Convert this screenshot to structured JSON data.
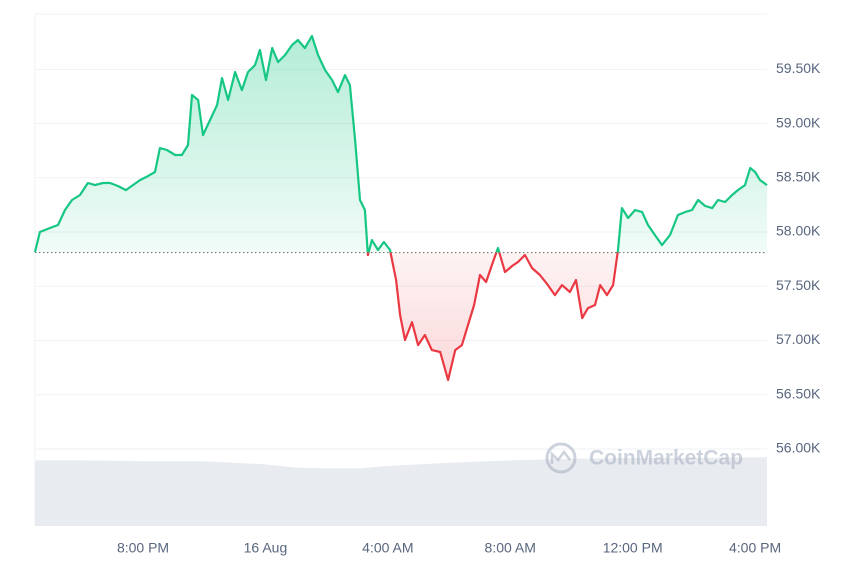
{
  "chart_data": {
    "type": "line",
    "x": [
      16.47,
      16.63,
      16.96,
      17.22,
      17.45,
      17.68,
      17.94,
      18.2,
      18.43,
      18.69,
      18.92,
      19.18,
      19.44,
      19.67,
      19.9,
      20.16,
      20.39,
      20.55,
      20.78,
      21.05,
      21.27,
      21.47,
      21.6,
      21.8,
      21.96,
      22.19,
      22.42,
      22.58,
      22.78,
      23.01,
      23.23,
      23.43,
      23.66,
      23.82,
      24.02,
      24.22,
      24.41,
      24.64,
      24.87,
      25.06,
      25.29,
      25.52,
      25.72,
      25.95,
      26.18,
      26.37,
      26.6,
      26.76,
      26.93,
      27.09,
      27.25,
      27.35,
      27.48,
      27.68,
      27.87,
      28.07,
      28.27,
      28.4,
      28.56,
      28.79,
      28.99,
      29.21,
      29.44,
      29.71,
      29.97,
      30.2,
      30.42,
      30.62,
      30.82,
      31.01,
      31.21,
      31.4,
      31.6,
      31.83,
      32.06,
      32.25,
      32.48,
      32.71,
      32.97,
      33.23,
      33.46,
      33.69,
      33.95,
      34.15,
      34.35,
      34.54,
      34.77,
      34.94,
      35.16,
      35.36,
      35.52,
      35.65,
      35.85,
      36.08,
      36.31,
      36.5,
      36.73,
      36.96,
      37.22,
      37.48,
      37.71,
      37.94,
      38.14,
      38.37,
      38.6,
      38.79,
      39.02,
      39.25,
      39.44,
      39.67,
      39.84,
      40.0,
      40.16,
      40.39
    ],
    "series": [
      {
        "values": [
          57816,
          58000,
          58037,
          58065,
          58203,
          58295,
          58341,
          58452,
          58433,
          58452,
          58452,
          58424,
          58387,
          58433,
          58479,
          58516,
          58553,
          58774,
          58756,
          58710,
          58710,
          58802,
          59263,
          59217,
          58894,
          59032,
          59171,
          59419,
          59217,
          59475,
          59308,
          59475,
          59539,
          59679,
          59401,
          59697,
          59567,
          59631,
          59724,
          59770,
          59696,
          59807,
          59631,
          59493,
          59401,
          59290,
          59447,
          59355,
          58848,
          58295,
          58203,
          57788,
          57926,
          57834,
          57908,
          57834,
          57558,
          57235,
          57005,
          57170,
          56958,
          57051,
          56912,
          56894,
          56636,
          56912,
          56958,
          57143,
          57327,
          57604,
          57539,
          57696,
          57853,
          57631,
          57687,
          57723,
          57788,
          57668,
          57604,
          57511,
          57419,
          57511,
          57447,
          57558,
          57207,
          57299,
          57327,
          57511,
          57419,
          57511,
          57834,
          58221,
          58129,
          58203,
          58184,
          58065,
          57972,
          57880,
          57972,
          58157,
          58184,
          58203,
          58295,
          58240,
          58221,
          58295,
          58277,
          58341,
          58387,
          58433,
          58590,
          58553,
          58479,
          58433
        ]
      }
    ],
    "up_color": "#16c784",
    "down_color": "#ea3943",
    "baseline": 57810,
    "xlim": [
      16.47,
      40.39
    ],
    "ylim": [
      55290,
      60010
    ],
    "xticks": [
      {
        "value": 20,
        "label": "8:00 PM"
      },
      {
        "value": 24,
        "label": "16 Aug"
      },
      {
        "value": 28,
        "label": "4:00 AM"
      },
      {
        "value": 32,
        "label": "8:00 AM"
      },
      {
        "value": 36,
        "label": "12:00 PM"
      },
      {
        "value": 40,
        "label": "4:00 PM"
      }
    ],
    "yticks": [
      {
        "value": 56000,
        "label": "56.00K"
      },
      {
        "value": 56500,
        "label": "56.50K"
      },
      {
        "value": 57000,
        "label": "57.00K"
      },
      {
        "value": 57500,
        "label": "57.50K"
      },
      {
        "value": 58000,
        "label": "58.00K"
      },
      {
        "value": 58500,
        "label": "58.50K"
      },
      {
        "value": 59000,
        "label": "59.00K"
      },
      {
        "value": 59500,
        "label": "59.50K"
      }
    ],
    "grid": true,
    "volume": {
      "x": [
        16.47,
        18,
        20,
        22,
        24,
        25,
        26,
        27,
        28,
        30,
        32,
        34,
        36,
        38,
        40.39
      ],
      "values": [
        82,
        82,
        81,
        81,
        77,
        73,
        72,
        72,
        75,
        79,
        82,
        84,
        85,
        85,
        86
      ],
      "vlim": [
        0,
        100
      ],
      "color": "#e8ebef"
    },
    "watermark": "CoinMarketCap"
  }
}
